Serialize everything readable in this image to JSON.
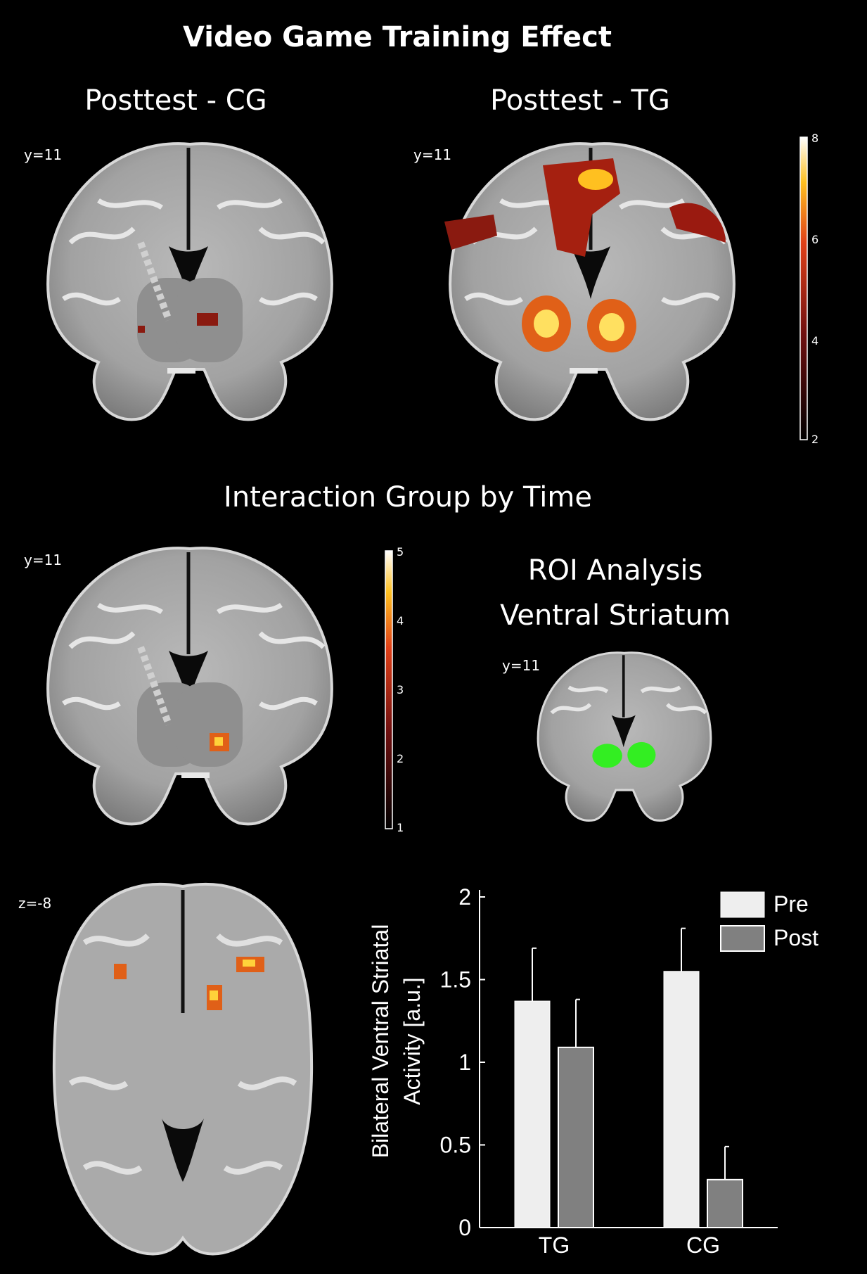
{
  "figure": {
    "main_title": "Video Game Training Effect",
    "panel_cg_title": "Posttest - CG",
    "panel_tg_title": "Posttest - TG",
    "interaction_title": "Interaction  Group by Time",
    "roi_title_line1": "ROI Analysis",
    "roi_title_line2": "Ventral Striatum",
    "coord_cg": "y=11",
    "coord_tg": "y=11",
    "coord_interaction": "y=11",
    "coord_roi": "y=11",
    "coord_axial": "z=-8",
    "colorbar_top": {
      "ticks": [
        "8",
        "6",
        "4",
        "2"
      ]
    },
    "colorbar_mid": {
      "ticks": [
        "5",
        "4",
        "3",
        "2",
        "1"
      ]
    },
    "colors": {
      "activation_hot": "#ffd23a",
      "activation_mid": "#e0501a",
      "activation_low": "#8a1a10",
      "roi": "#33ee22"
    }
  },
  "chart_data": {
    "type": "bar",
    "categories": [
      "TG",
      "CG"
    ],
    "series": [
      {
        "name": "Pre",
        "values": [
          1.37,
          1.55
        ],
        "error": [
          0.32,
          0.26
        ],
        "color": "#eeeeee"
      },
      {
        "name": "Post",
        "values": [
          1.09,
          0.29
        ],
        "error": [
          0.29,
          0.2
        ],
        "color": "#808080"
      }
    ],
    "ylabel_line1": "Bilateral Ventral Striatal",
    "ylabel_line2": "Activity [a.u.]",
    "ylim": [
      0,
      2
    ],
    "yticks": [
      "0",
      "0.5",
      "1",
      "1.5",
      "2"
    ],
    "legend_position": "top-right"
  }
}
